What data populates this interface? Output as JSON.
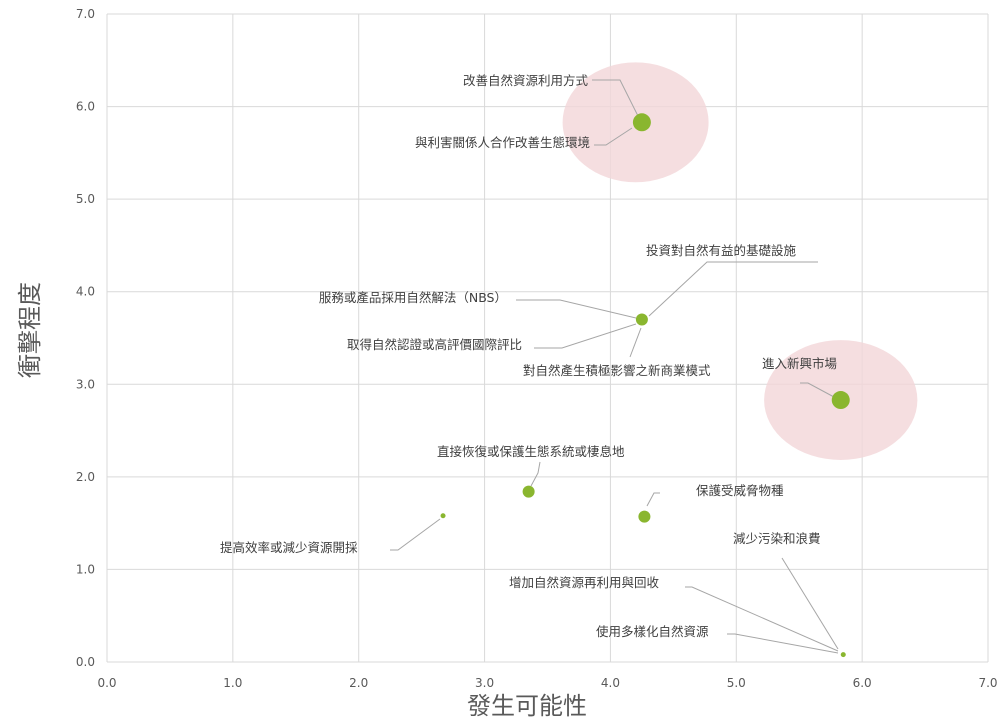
{
  "chart_data": {
    "type": "scatter",
    "xlabel": "發生可能性",
    "ylabel": "衝擊程度",
    "xlim": [
      0,
      7
    ],
    "ylim": [
      0,
      7
    ],
    "xticks": [
      "0.0",
      "1.0",
      "2.0",
      "3.0",
      "4.0",
      "5.0",
      "6.0",
      "7.0"
    ],
    "yticks": [
      "0.0",
      "1.0",
      "2.0",
      "3.0",
      "4.0",
      "5.0",
      "6.0",
      "7.0"
    ],
    "grid": true,
    "marker_color": "#8ab62f",
    "highlight_color": "#f2d6d8",
    "highlights": [
      {
        "x": 4.2,
        "y": 5.83,
        "rx": 1.0,
        "ry": 0.83
      },
      {
        "x": 5.83,
        "y": 2.83,
        "rx": 1.05,
        "ry": 0.83
      }
    ],
    "points": [
      {
        "x": 4.25,
        "y": 5.83,
        "size": "large",
        "labels": [
          "改善自然資源利用方式",
          "與利害關係人合作改善生態環境"
        ]
      },
      {
        "x": 4.25,
        "y": 3.7,
        "size": "medium",
        "labels": [
          "投資對自然有益的基礎設施",
          "服務或產品採用自然解法（NBS）",
          "取得自然認證或高評價國際評比",
          "對自然產生積極影響之新商業模式"
        ]
      },
      {
        "x": 5.83,
        "y": 2.83,
        "size": "large",
        "labels": [
          "進入新興市場"
        ]
      },
      {
        "x": 3.35,
        "y": 1.84,
        "size": "medium",
        "labels": [
          "直接恢復或保護生態系統或棲息地"
        ]
      },
      {
        "x": 4.27,
        "y": 1.57,
        "size": "medium",
        "labels": [
          "保護受威脅物種"
        ]
      },
      {
        "x": 2.67,
        "y": 1.58,
        "size": "small",
        "labels": [
          "提高效率或減少資源開採"
        ]
      },
      {
        "x": 5.85,
        "y": 0.08,
        "size": "small",
        "labels": [
          "減少污染和浪費",
          "增加自然資源再利用與回收",
          "使用多樣化自然資源"
        ]
      }
    ]
  }
}
